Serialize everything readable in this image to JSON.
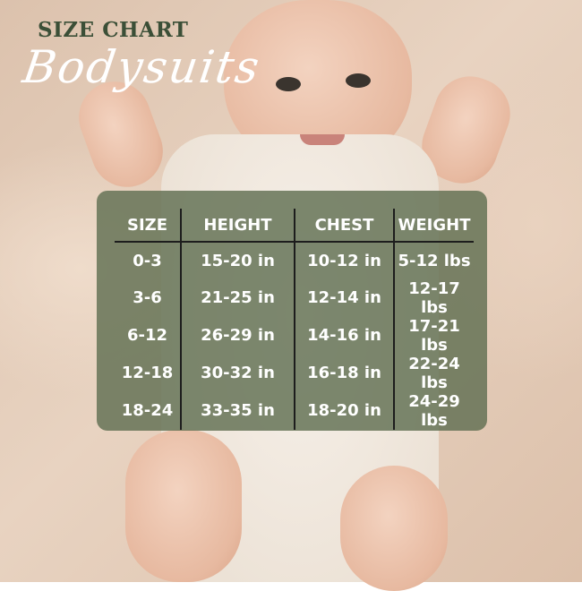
{
  "heading": {
    "title": "SIZE CHART",
    "subtitle": "Bodysuits"
  },
  "colors": {
    "title": "#3b4f37",
    "panel": "#606f52",
    "text": "#ffffff"
  },
  "table": {
    "headers": [
      "SIZE",
      "HEIGHT",
      "CHEST",
      "WEIGHT"
    ],
    "rows": [
      [
        "0-3",
        "15-20 in",
        "10-12 in",
        "5-12 lbs"
      ],
      [
        "3-6",
        "21-25 in",
        "12-14 in",
        "12-17 lbs"
      ],
      [
        "6-12",
        "26-29 in",
        "14-16 in",
        "17-21 lbs"
      ],
      [
        "12-18",
        "30-32 in",
        "16-18 in",
        "22-24 lbs"
      ],
      [
        "18-24",
        "33-35 in",
        "18-20 in",
        "24-29 lbs"
      ]
    ]
  }
}
